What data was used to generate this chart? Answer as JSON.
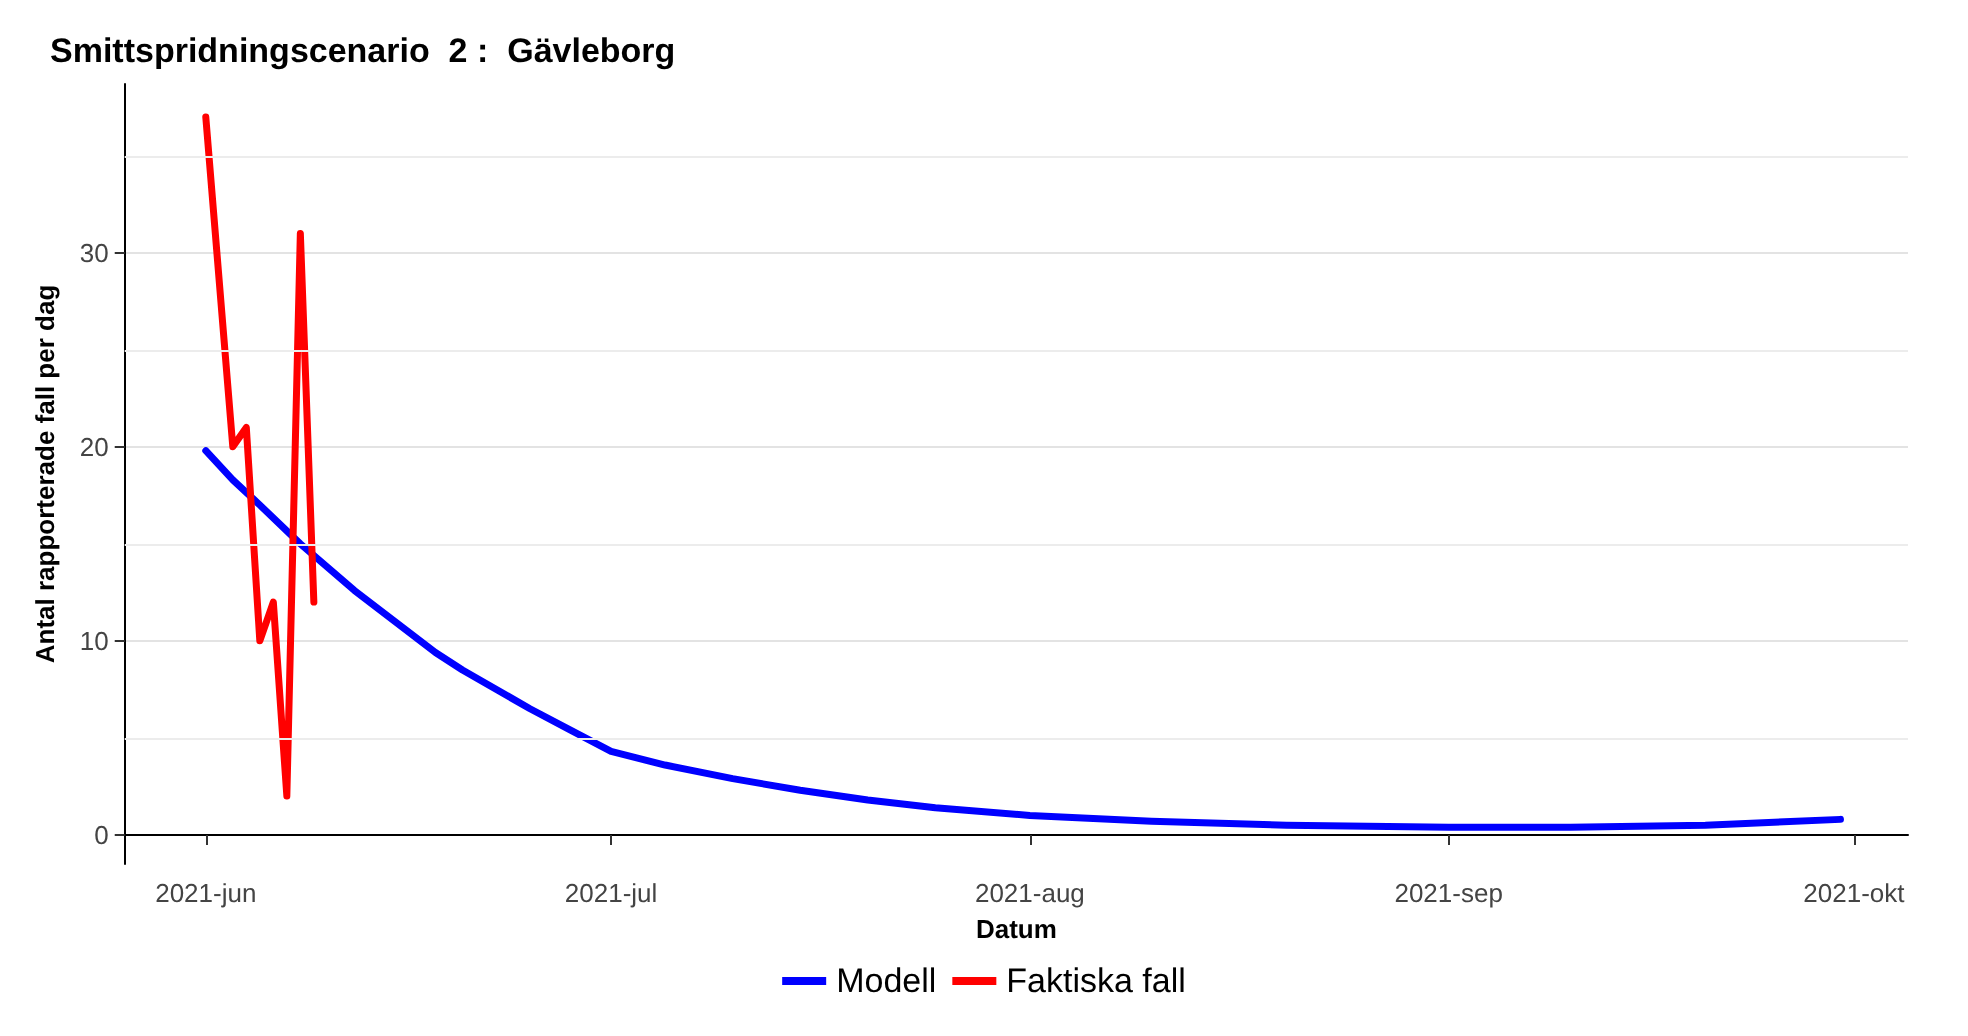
{
  "chart_data": {
    "type": "line",
    "title": "Smittspridningscenario  2 :  Gävleborg",
    "xlabel": "Datum",
    "ylabel": "Antal rapporterade fall per dag",
    "series": [
      {
        "name": "Modell",
        "color": "#0000ff",
        "x": [
          "2021-06-01",
          "2021-06-03",
          "2021-06-05",
          "2021-06-08",
          "2021-06-10",
          "2021-06-12",
          "2021-06-15",
          "2021-06-18",
          "2021-06-20",
          "2021-06-22",
          "2021-06-25",
          "2021-06-28",
          "2021-07-01",
          "2021-07-05",
          "2021-07-10",
          "2021-07-15",
          "2021-07-20",
          "2021-07-25",
          "2021-08-01",
          "2021-08-10",
          "2021-08-20",
          "2021-09-01",
          "2021-09-10",
          "2021-09-20",
          "2021-09-30"
        ],
        "values": [
          19.8,
          18.3,
          17.0,
          15.0,
          13.8,
          12.6,
          11.0,
          9.4,
          8.5,
          7.7,
          6.5,
          5.4,
          4.3,
          3.6,
          2.9,
          2.3,
          1.8,
          1.4,
          1.0,
          0.7,
          0.5,
          0.4,
          0.4,
          0.5,
          0.8
        ]
      },
      {
        "name": "Faktiska fall",
        "color": "#ff0000",
        "x": [
          "2021-06-01",
          "2021-06-03",
          "2021-06-04",
          "2021-06-05",
          "2021-06-06",
          "2021-06-07",
          "2021-06-08",
          "2021-06-09"
        ],
        "values": [
          37,
          20,
          21,
          10,
          12,
          2,
          31,
          12
        ]
      }
    ],
    "xlim": [
      "2021-05-26",
      "2021-10-05"
    ],
    "xticks": [
      {
        "value": "2021-06-01",
        "label": "2021-jun"
      },
      {
        "value": "2021-07-01",
        "label": "2021-jul"
      },
      {
        "value": "2021-08-01",
        "label": "2021-aug"
      },
      {
        "value": "2021-09-01",
        "label": "2021-sep"
      },
      {
        "value": "2021-10-01",
        "label": "2021-okt"
      }
    ],
    "ylim": [
      -1.5,
      38.7
    ],
    "yticks": [
      0,
      {
        "value": 5,
        "label": null
      },
      10,
      {
        "value": 15,
        "label": null
      },
      20,
      {
        "value": 25,
        "label": null
      },
      30,
      {
        "value": 35,
        "label": null
      }
    ],
    "grid": "y",
    "legend": "bottom",
    "marker": "none",
    "line_style": "solid"
  }
}
